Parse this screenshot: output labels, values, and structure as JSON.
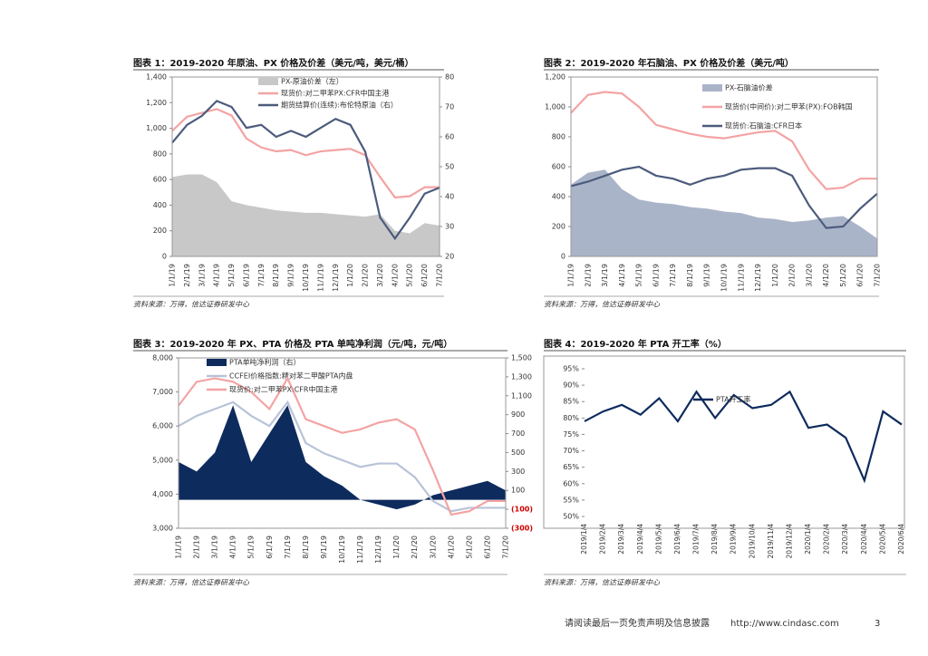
{
  "chart_data": [
    {
      "type": "line",
      "title": "图表 1：2019-2020 年原油、PX 价格及价差（美元/吨，美元/桶）",
      "source": "资料来源：万得，信达证券研发中心",
      "categories": [
        "1/1/19",
        "2/1/19",
        "3/1/19",
        "4/1/19",
        "5/1/19",
        "6/1/19",
        "7/1/19",
        "8/1/19",
        "9/1/19",
        "10/1/19",
        "11/1/19",
        "12/1/19",
        "1/1/20",
        "2/1/20",
        "3/1/20",
        "4/1/20",
        "5/1/20",
        "6/1/20",
        "7/1/20"
      ],
      "ylim": [
        0,
        1400
      ],
      "yticks": [
        0,
        200,
        400,
        600,
        800,
        {
          "value": 1000,
          "label": "1,000"
        },
        {
          "value": 1200,
          "label": "1,200"
        },
        {
          "value": 1400,
          "label": "1,400"
        }
      ],
      "y2lim": [
        20,
        80
      ],
      "y2ticks": [
        20,
        30,
        40,
        50,
        60,
        70,
        80
      ],
      "series": [
        {
          "name": "PX-原油价差（左）",
          "style": "area",
          "color": "#c8c8c8",
          "values": [
            620,
            640,
            640,
            580,
            430,
            400,
            380,
            360,
            350,
            340,
            340,
            330,
            320,
            310,
            330,
            200,
            180,
            260,
            240
          ]
        },
        {
          "name": "现货价:对二甲苯PX:CFR中国主港",
          "style": "line",
          "color": "#f4a3a3",
          "values": [
            980,
            1090,
            1120,
            1150,
            1100,
            920,
            850,
            820,
            830,
            790,
            820,
            830,
            840,
            790,
            620,
            460,
            470,
            540,
            540
          ]
        },
        {
          "name": "期货结算价(连续):布伦特原油（右）",
          "style": "line",
          "color": "#4c5b7c",
          "axis": "y2",
          "values": [
            58,
            64,
            67,
            72,
            70,
            63,
            64,
            60,
            62,
            60,
            63,
            66,
            64,
            55,
            33,
            26,
            33,
            41,
            43
          ]
        }
      ]
    },
    {
      "type": "line",
      "title": "图表 2：2019-2020 年石脑油、PX 价格及价差（美元/吨）",
      "source": "资料来源：万得，信达证券研发中心",
      "categories": [
        "1/1/19",
        "2/1/19",
        "3/1/19",
        "4/1/19",
        "5/1/19",
        "6/1/19",
        "7/1/19",
        "8/1/19",
        "9/1/19",
        "10/1/19",
        "11/1/19",
        "12/1/19",
        "1/1/20",
        "2/1/20",
        "3/1/20",
        "4/1/20",
        "5/1/20",
        "6/1/20",
        "7/1/20"
      ],
      "ylim": [
        0,
        1200
      ],
      "yticks": [
        0,
        200,
        400,
        600,
        800,
        {
          "value": 1000,
          "label": "1,000"
        },
        {
          "value": 1200,
          "label": "1,200"
        }
      ],
      "series": [
        {
          "name": "PX-石脑油价差",
          "style": "area",
          "color": "#aab4c9",
          "values": [
            480,
            560,
            580,
            450,
            380,
            360,
            350,
            330,
            320,
            300,
            290,
            260,
            250,
            230,
            240,
            260,
            270,
            200,
            120
          ]
        },
        {
          "name": "现货价(中间价):对二甲苯(PX):FOB韩国",
          "style": "line",
          "color": "#f4a3a3",
          "values": [
            960,
            1080,
            1100,
            1090,
            1000,
            880,
            850,
            820,
            800,
            790,
            810,
            830,
            840,
            770,
            580,
            450,
            460,
            520,
            520
          ]
        },
        {
          "name": "现货价:石脑油:CFR日本",
          "style": "line",
          "color": "#4c5b7c",
          "values": [
            470,
            500,
            540,
            580,
            600,
            540,
            520,
            480,
            520,
            540,
            580,
            590,
            590,
            540,
            340,
            190,
            200,
            320,
            420
          ]
        }
      ]
    },
    {
      "type": "line",
      "title": "图表 3：2019-2020 年 PX、PTA 价格及 PTA 单吨净利润（元/吨，元/吨）",
      "source": "资料来源：万得，信达证券研发中心",
      "categories": [
        "1/1/19",
        "2/1/19",
        "3/1/19",
        "4/1/19",
        "5/1/19",
        "6/1/19",
        "7/1/19",
        "8/1/19",
        "9/1/19",
        "10/1/19",
        "11/1/19",
        "12/1/19",
        "1/1/20",
        "2/1/20",
        "3/1/20",
        "4/1/20",
        "5/1/20",
        "6/1/20",
        "7/1/20"
      ],
      "ylim": [
        3000,
        8000
      ],
      "yticks": [
        {
          "value": 3000,
          "label": "3,000"
        },
        {
          "value": 4000,
          "label": "4,000"
        },
        {
          "value": 5000,
          "label": "5,000"
        },
        {
          "value": 6000,
          "label": "6,000"
        },
        {
          "value": 7000,
          "label": "7,000"
        },
        {
          "value": 8000,
          "label": "8,000"
        }
      ],
      "y2lim": [
        -300,
        1500
      ],
      "y2ticks": [
        {
          "value": -300,
          "label": "(300)"
        },
        {
          "value": -100,
          "label": "(100)"
        },
        100,
        300,
        500,
        700,
        900,
        {
          "value": 1100,
          "label": "1,100"
        },
        {
          "value": 1300,
          "label": "1,300"
        },
        {
          "value": 1500,
          "label": "1,500"
        }
      ],
      "series": [
        {
          "name": "PTA单吨净利润（右）",
          "style": "area",
          "color": "#0e2b5e",
          "axis": "y2",
          "values": [
            400,
            300,
            500,
            1000,
            400,
            700,
            1000,
            400,
            250,
            150,
            0,
            -50,
            -100,
            -50,
            50,
            100,
            150,
            200,
            100
          ]
        },
        {
          "name": "CCFEI价格指数:精对苯二甲酸PTA内盘",
          "style": "line",
          "color": "#b9c3d8",
          "values": [
            6000,
            6300,
            6500,
            6700,
            6300,
            6000,
            6700,
            5500,
            5200,
            5000,
            4800,
            4900,
            4900,
            4500,
            3800,
            3500,
            3600,
            3600,
            3600
          ]
        },
        {
          "name": "现货价:对二甲苯PX:CFR中国主港",
          "style": "line",
          "color": "#f4a3a3",
          "values": [
            6600,
            7300,
            7400,
            7300,
            7000,
            6500,
            7400,
            6200,
            6000,
            5800,
            5900,
            6100,
            6200,
            5900,
            4700,
            3400,
            3500,
            3800,
            3800
          ]
        }
      ]
    },
    {
      "type": "line",
      "title": "图表 4：2019-2020 年 PTA 开工率（%）",
      "source": "资料来源：万得，信达证券研发中心",
      "categories": [
        "2019/1/4",
        "2019/2/4",
        "2019/3/4",
        "2019/4/4",
        "2019/5/4",
        "2019/6/4",
        "2019/7/4",
        "2019/8/4",
        "2019/9/4",
        "2019/10/4",
        "2019/11/4",
        "2019/12/4",
        "2020/1/4",
        "2020/2/4",
        "2020/3/4",
        "2020/4/4",
        "2020/5/4",
        "2020/6/4"
      ],
      "ylim": [
        50,
        95
      ],
      "yticks": [
        {
          "value": 50,
          "label": "50%"
        },
        {
          "value": 55,
          "label": "55%"
        },
        {
          "value": 60,
          "label": "60%"
        },
        {
          "value": 65,
          "label": "65%"
        },
        {
          "value": 70,
          "label": "70%"
        },
        {
          "value": 75,
          "label": "75%"
        },
        {
          "value": 80,
          "label": "80%"
        },
        {
          "value": 85,
          "label": "85%"
        },
        {
          "value": 90,
          "label": "90%"
        },
        {
          "value": 95,
          "label": "95%"
        }
      ],
      "series": [
        {
          "name": "PTA开工率",
          "style": "line",
          "color": "#0e2b5e",
          "values": [
            79,
            82,
            84,
            81,
            86,
            79,
            88,
            80,
            87,
            83,
            84,
            88,
            77,
            78,
            74,
            61,
            82,
            78
          ]
        }
      ]
    }
  ],
  "footer": {
    "disclaimer": "请阅读最后一页免责声明及信息披露",
    "url": "http://www.cindasc.com",
    "page": "3"
  }
}
